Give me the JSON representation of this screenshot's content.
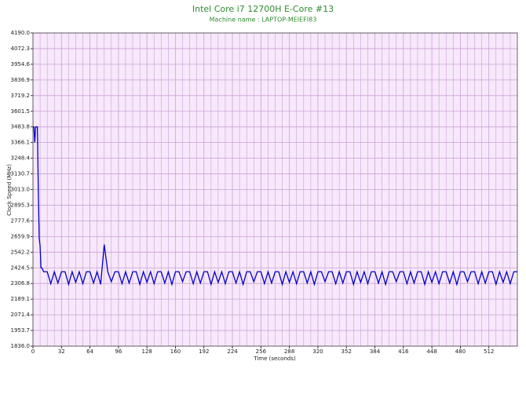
{
  "chart_data": {
    "type": "line",
    "title": "Intel Core i7 12700H E-Core #13",
    "subtitle": "Machine name : LAPTOP-MEIEFI83",
    "x_label": "Time (seconds)",
    "y_label": "Clock Speed (MHz)",
    "grid": true,
    "background": "#f7e8fb",
    "grid_color": "#c9a3d3",
    "xlim": [
      0,
      544
    ],
    "xticks": [
      0,
      32,
      64,
      96,
      128,
      160,
      192,
      224,
      256,
      288,
      320,
      352,
      384,
      416,
      448,
      480,
      512
    ],
    "ylim": [
      1836,
      4190
    ],
    "yticks": [
      {
        "value": 1836,
        "label": "1836.0"
      },
      1953.7,
      2071.4,
      2189.1,
      2306.8,
      2424.5,
      2542.2,
      2659.9,
      2777.6,
      2895.3,
      {
        "value": 3013,
        "label": "3013.0"
      },
      3130.7,
      3248.4,
      3366.1,
      3483.8,
      3601.5,
      3719.2,
      3836.9,
      3954.6,
      4072.3,
      {
        "value": 4190,
        "label": "4190.0"
      }
    ],
    "x": [
      0,
      1,
      2,
      3,
      5,
      6,
      7,
      8,
      9,
      10,
      12,
      16,
      20,
      24,
      28,
      32,
      36,
      40,
      44,
      48,
      52,
      56,
      60,
      64,
      68,
      72,
      76,
      80,
      84,
      88,
      92,
      96,
      100,
      104,
      108,
      112,
      116,
      120,
      124,
      128,
      132,
      136,
      140,
      144,
      148,
      152,
      156,
      160,
      164,
      168,
      172,
      176,
      180,
      184,
      188,
      192,
      196,
      200,
      204,
      208,
      212,
      216,
      220,
      224,
      228,
      232,
      236,
      240,
      244,
      248,
      252,
      256,
      260,
      264,
      268,
      272,
      276,
      280,
      284,
      288,
      292,
      296,
      300,
      304,
      308,
      312,
      316,
      320,
      324,
      328,
      332,
      336,
      340,
      344,
      348,
      352,
      356,
      360,
      364,
      368,
      372,
      376,
      380,
      384,
      388,
      392,
      396,
      400,
      404,
      408,
      412,
      416,
      420,
      424,
      428,
      432,
      436,
      440,
      444,
      448,
      452,
      456,
      460,
      464,
      468,
      472,
      476,
      480,
      484,
      488,
      492,
      496,
      500,
      504,
      508,
      512,
      516,
      520,
      524,
      528,
      532,
      536,
      540,
      544
    ],
    "series": [
      {
        "name": "Clock Speed",
        "color": "#0000c8",
        "values": [
          3483.8,
          3483.8,
          3366.1,
          3483.8,
          3483.8,
          3000,
          2650,
          2590,
          2424.5,
          2424.5,
          2395,
          2395,
          2305,
          2395,
          2310,
          2395,
          2395,
          2300,
          2395,
          2315,
          2395,
          2305,
          2395,
          2395,
          2310,
          2395,
          2300,
          2600,
          2395,
          2320,
          2395,
          2395,
          2305,
          2395,
          2310,
          2395,
          2395,
          2300,
          2395,
          2315,
          2395,
          2305,
          2395,
          2395,
          2310,
          2395,
          2300,
          2395,
          2395,
          2320,
          2395,
          2395,
          2305,
          2395,
          2310,
          2395,
          2395,
          2300,
          2395,
          2315,
          2395,
          2305,
          2395,
          2395,
          2310,
          2395,
          2300,
          2395,
          2395,
          2320,
          2395,
          2395,
          2305,
          2395,
          2310,
          2395,
          2395,
          2300,
          2395,
          2315,
          2395,
          2305,
          2395,
          2395,
          2310,
          2395,
          2300,
          2395,
          2395,
          2320,
          2395,
          2395,
          2305,
          2395,
          2310,
          2395,
          2395,
          2300,
          2395,
          2315,
          2395,
          2305,
          2395,
          2395,
          2310,
          2395,
          2300,
          2395,
          2395,
          2320,
          2395,
          2395,
          2305,
          2395,
          2310,
          2395,
          2395,
          2300,
          2395,
          2315,
          2395,
          2305,
          2395,
          2395,
          2310,
          2395,
          2300,
          2395,
          2395,
          2320,
          2395,
          2395,
          2305,
          2395,
          2310,
          2395,
          2395,
          2300,
          2395,
          2315,
          2395,
          2305,
          2395,
          2395
        ]
      }
    ]
  }
}
